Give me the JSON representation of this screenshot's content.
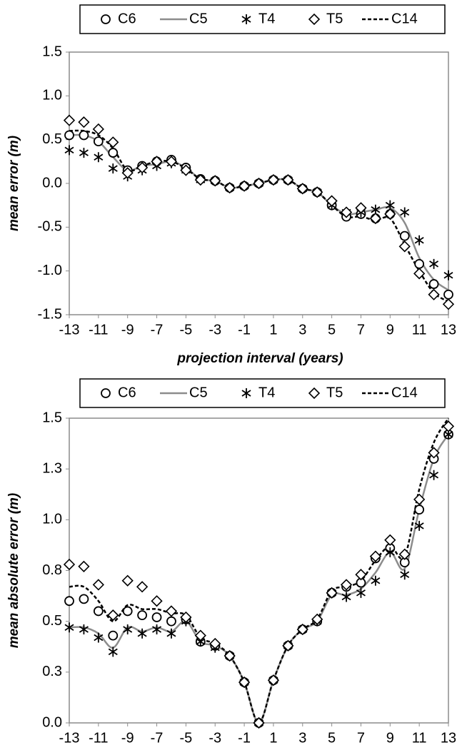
{
  "chart_data": [
    {
      "type": "line",
      "y_label": "mean error (m)",
      "x_label": "projection interval (years)",
      "x": [
        -13,
        -12,
        -11,
        -10,
        -9,
        -8,
        -7,
        -6,
        -5,
        -4,
        -3,
        -2,
        -1,
        0,
        1,
        2,
        3,
        4,
        5,
        6,
        7,
        8,
        9,
        10,
        11,
        12,
        13
      ],
      "xlim": [
        -13,
        13
      ],
      "xticks": [
        -13,
        -11,
        -9,
        -7,
        -5,
        -3,
        -1,
        1,
        3,
        5,
        7,
        9,
        11,
        13
      ],
      "ylim": [
        -1.5,
        1.5
      ],
      "yticks": [
        -1.5,
        {
          "value": -1,
          "label": "-1.0"
        },
        -0.5,
        {
          "value": 0,
          "label": "0.0"
        },
        0.5,
        {
          "value": 1,
          "label": "1.0"
        },
        1.5
      ],
      "legend": "top",
      "series": [
        {
          "name": "C6",
          "color": "#000000",
          "marker": "circle",
          "values": [
            0.55,
            0.55,
            0.48,
            0.35,
            0.15,
            0.2,
            0.25,
            0.27,
            0.18,
            0.05,
            0.03,
            -0.05,
            -0.03,
            0,
            0.04,
            0.04,
            -0.06,
            -0.1,
            -0.25,
            -0.38,
            -0.35,
            -0.4,
            -0.35,
            -0.6,
            -0.92,
            -1.15,
            -1.27
          ]
        },
        {
          "name": "C5",
          "color": "#8c8c8c",
          "line": "solid",
          "values": [
            0.55,
            0.55,
            0.48,
            0.3,
            0.15,
            0.2,
            0.22,
            0.25,
            0.18,
            0.05,
            0.03,
            -0.05,
            -0.03,
            0,
            0.04,
            0.04,
            -0.06,
            -0.1,
            -0.25,
            -0.35,
            -0.33,
            -0.3,
            -0.28,
            -0.45,
            -0.85,
            -1.1,
            -1.22
          ]
        },
        {
          "name": "T4",
          "color": "#000000",
          "marker": "asterisk",
          "values": [
            0.38,
            0.35,
            0.3,
            0.17,
            0.08,
            0.15,
            0.2,
            0.23,
            0.15,
            0.04,
            0.03,
            -0.05,
            -0.03,
            0,
            0.04,
            0.04,
            -0.06,
            -0.1,
            -0.25,
            -0.33,
            -0.33,
            -0.3,
            -0.25,
            -0.33,
            -0.65,
            -0.92,
            -1.05
          ]
        },
        {
          "name": "T5",
          "color": "#000000",
          "marker": "diamond",
          "values": [
            0.72,
            0.7,
            0.62,
            0.47,
            0.12,
            0.18,
            0.25,
            0.25,
            0.15,
            0.04,
            0.03,
            -0.05,
            -0.03,
            0,
            0.04,
            0.04,
            -0.06,
            -0.1,
            -0.2,
            -0.33,
            -0.28,
            -0.4,
            -0.35,
            -0.72,
            -1.03,
            -1.27,
            -1.38
          ]
        },
        {
          "name": "C14",
          "color": "#000000",
          "line": "dashed",
          "values": [
            0.6,
            0.6,
            0.55,
            0.4,
            0.15,
            0.2,
            0.25,
            0.25,
            0.17,
            0.05,
            0.03,
            -0.05,
            -0.03,
            0,
            0.04,
            0.04,
            -0.06,
            -0.1,
            -0.25,
            -0.38,
            -0.38,
            -0.42,
            -0.4,
            -0.7,
            -1.0,
            -1.25,
            -1.35
          ]
        }
      ]
    },
    {
      "type": "line",
      "y_label": "mean absolute error (m)",
      "x_label": "projection interval (years)",
      "x": [
        -13,
        -12,
        -11,
        -10,
        -9,
        -8,
        -7,
        -6,
        -5,
        -4,
        -3,
        -2,
        -1,
        0,
        1,
        2,
        3,
        4,
        5,
        6,
        7,
        8,
        9,
        10,
        11,
        12,
        13
      ],
      "xlim": [
        -13,
        13
      ],
      "xticks": [
        -13,
        -11,
        -9,
        -7,
        -5,
        -3,
        -1,
        1,
        3,
        5,
        7,
        9,
        11,
        13
      ],
      "ylim": [
        0,
        1.5
      ],
      "yticks": [
        {
          "value": 0,
          "label": "0.0"
        },
        {
          "value": 0.25,
          "label": "0.3"
        },
        0.5,
        {
          "value": 0.75,
          "label": "0.8"
        },
        {
          "value": 1,
          "label": "1.0"
        },
        {
          "value": 1.25,
          "label": "1.3"
        },
        1.5
      ],
      "legend": "top",
      "series": [
        {
          "name": "C6",
          "color": "#000000",
          "marker": "circle",
          "values": [
            0.6,
            0.61,
            0.55,
            0.43,
            0.55,
            0.53,
            0.52,
            0.5,
            0.51,
            0.4,
            0.38,
            0.33,
            0.2,
            0,
            0.21,
            0.38,
            0.46,
            0.5,
            0.64,
            0.67,
            0.69,
            0.81,
            0.86,
            0.79,
            1.05,
            1.3,
            1.42
          ]
        },
        {
          "name": "C5",
          "color": "#8c8c8c",
          "line": "solid",
          "values": [
            0.47,
            0.47,
            0.44,
            0.37,
            0.47,
            0.45,
            0.47,
            0.45,
            0.5,
            0.4,
            0.38,
            0.33,
            0.2,
            0,
            0.21,
            0.38,
            0.46,
            0.5,
            0.63,
            0.63,
            0.66,
            0.74,
            0.84,
            0.76,
            1.05,
            1.3,
            1.42
          ]
        },
        {
          "name": "T4",
          "color": "#000000",
          "marker": "asterisk",
          "values": [
            0.47,
            0.46,
            0.42,
            0.35,
            0.46,
            0.44,
            0.46,
            0.44,
            0.5,
            0.4,
            0.37,
            0.33,
            0.2,
            0,
            0.21,
            0.38,
            0.46,
            0.5,
            0.64,
            0.62,
            0.64,
            0.7,
            0.84,
            0.73,
            0.97,
            1.22,
            1.42
          ]
        },
        {
          "name": "T5",
          "color": "#000000",
          "marker": "diamond",
          "values": [
            0.78,
            0.77,
            0.68,
            0.53,
            0.7,
            0.67,
            0.6,
            0.55,
            0.52,
            0.43,
            0.39,
            0.33,
            0.2,
            0,
            0.21,
            0.38,
            0.46,
            0.51,
            0.64,
            0.68,
            0.73,
            0.82,
            0.9,
            0.83,
            1.1,
            1.33,
            1.46
          ]
        },
        {
          "name": "C14",
          "color": "#000000",
          "line": "dashed",
          "values": [
            0.67,
            0.67,
            0.6,
            0.5,
            0.58,
            0.56,
            0.56,
            0.54,
            0.53,
            0.42,
            0.39,
            0.33,
            0.2,
            0,
            0.21,
            0.38,
            0.46,
            0.51,
            0.65,
            0.67,
            0.7,
            0.8,
            0.87,
            0.82,
            1.15,
            1.38,
            1.5
          ]
        }
      ]
    }
  ]
}
